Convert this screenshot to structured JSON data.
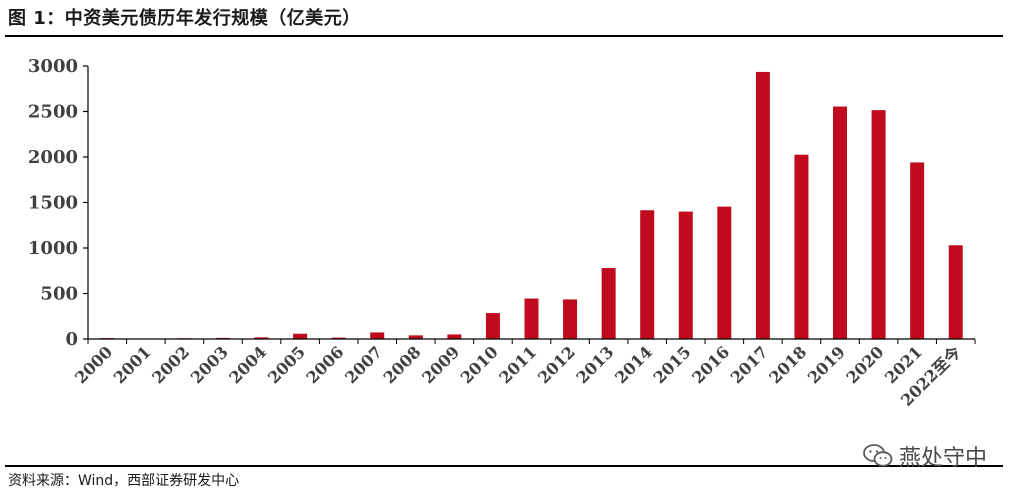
{
  "title": "图 1：中资美元债历年发行规模（亿美元）",
  "source": "资料来源：Wind，西部证券研发中心",
  "watermark": "燕处守中",
  "colors": {
    "bar": "#C00B1E",
    "axis": "#000000",
    "text": "#404040"
  },
  "chart_data": {
    "type": "bar",
    "title": "中资美元债历年发行规模（亿美元）",
    "xlabel": "",
    "ylabel": "",
    "ylim": [
      0,
      3000
    ],
    "yticks": [
      0,
      500,
      1000,
      1500,
      2000,
      2500,
      3000
    ],
    "grid": false,
    "categories": [
      "2000",
      "2001",
      "2002",
      "2003",
      "2004",
      "2005",
      "2006",
      "2007",
      "2008",
      "2009",
      "2010",
      "2011",
      "2012",
      "2013",
      "2014",
      "2015",
      "2016",
      "2017",
      "2018",
      "2019",
      "2020",
      "2021",
      "2022至今"
    ],
    "values": [
      10,
      0,
      8,
      12,
      18,
      58,
      15,
      72,
      40,
      50,
      285,
      445,
      435,
      780,
      1415,
      1400,
      1455,
      2935,
      2025,
      2555,
      2515,
      1940,
      1030
    ]
  }
}
